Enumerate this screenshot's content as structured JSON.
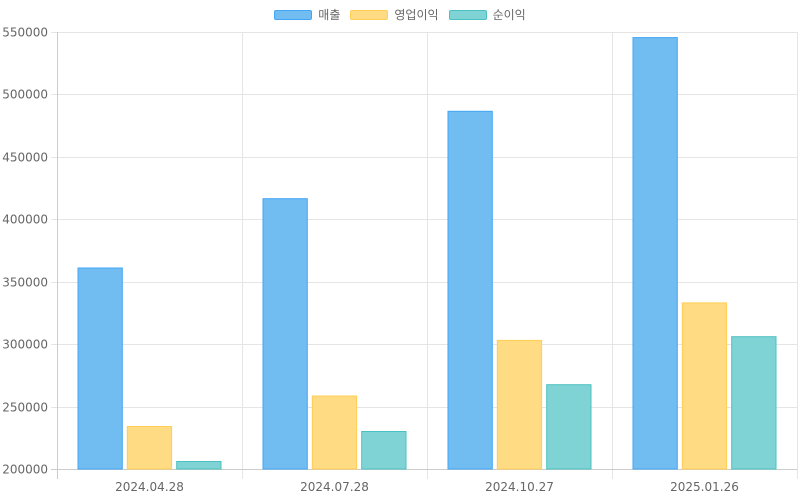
{
  "chart_data": {
    "type": "bar",
    "categories": [
      "2024.04.28",
      "2024.07.28",
      "2024.10.27",
      "2025.01.26"
    ],
    "series": [
      {
        "name": "매출",
        "values": [
          361000,
          416500,
          486500,
          545500
        ],
        "color": "#71BDF2",
        "border_color": "#42A5F5"
      },
      {
        "name": "영업이익",
        "values": [
          234000,
          258500,
          303000,
          333000
        ],
        "color": "#FFDB83",
        "border_color": "#FFCE56"
      },
      {
        "name": "순이익",
        "values": [
          206000,
          230000,
          267500,
          306000
        ],
        "color": "#80D3D5",
        "border_color": "#4BC0C0"
      }
    ],
    "ylim": [
      200000,
      550000
    ],
    "yticks": [
      {
        "value": 200000,
        "label": "200000"
      },
      {
        "value": 250000,
        "label": "250000"
      },
      {
        "value": 300000,
        "label": "300000"
      },
      {
        "value": 350000,
        "label": "350000"
      },
      {
        "value": 400000,
        "label": "400000"
      },
      {
        "value": 450000,
        "label": "450000"
      },
      {
        "value": 500000,
        "label": "500000"
      },
      {
        "value": 550000,
        "label": "550000"
      }
    ],
    "grid": true,
    "legend_position": "top-center",
    "grid_color": "#E5E5E5",
    "axis_color": "#CCCCCC"
  }
}
